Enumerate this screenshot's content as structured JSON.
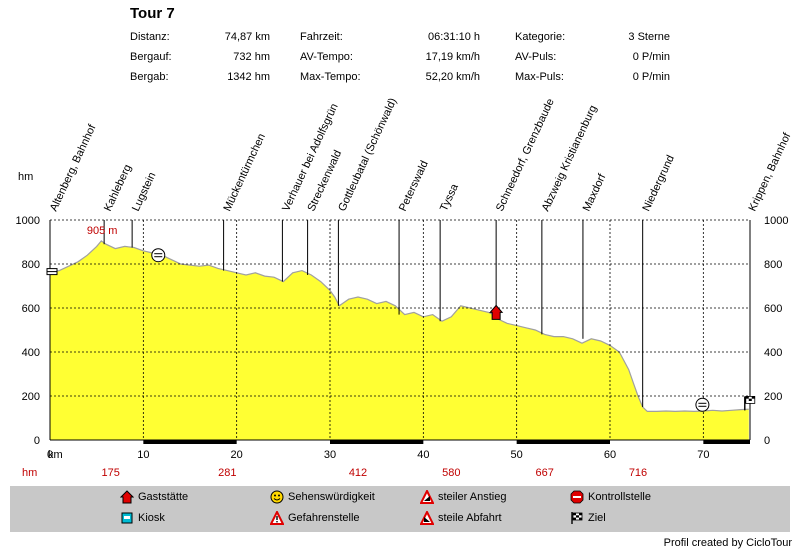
{
  "title": "Tour 7",
  "stats": [
    {
      "label": "Distanz:",
      "value": "74,87 km"
    },
    {
      "label": "Bergauf:",
      "value": "732 hm"
    },
    {
      "label": "Bergab:",
      "value": "1342 hm"
    },
    {
      "label": "Fahrzeit:",
      "value": "06:31:10 h"
    },
    {
      "label": "AV-Tempo:",
      "value": "17,19 km/h"
    },
    {
      "label": "Max-Tempo:",
      "value": "52,20 km/h"
    },
    {
      "label": "Kategorie:",
      "value": "3 Sterne"
    },
    {
      "label": "AV-Puls:",
      "value": "0 P/min"
    },
    {
      "label": "Max-Puls:",
      "value": "0 P/min"
    }
  ],
  "legend": {
    "items": [
      {
        "label": "Gaststätte",
        "icon": "restaurant-icon"
      },
      {
        "label": "Kiosk",
        "icon": "kiosk-icon"
      },
      {
        "label": "Sehenswürdigkeit",
        "icon": "smiley-icon"
      },
      {
        "label": "Gefahrenstelle",
        "icon": "danger-icon"
      },
      {
        "label": "steiler Anstieg",
        "icon": "steep-climb-icon"
      },
      {
        "label": "steile Abfahrt",
        "icon": "steep-descent-icon"
      },
      {
        "label": "Kontrollstelle",
        "icon": "stop-icon"
      },
      {
        "label": "Ziel",
        "icon": "finish-flag-icon"
      }
    ]
  },
  "credit": "Profil created by CicloTour",
  "chart_data": {
    "type": "area",
    "ylabel": "hm",
    "xlabel": "km",
    "bottom_label": "hm",
    "xlim": [
      0,
      75
    ],
    "ylim": [
      0,
      1000
    ],
    "x_ticks": [
      0,
      10,
      20,
      30,
      40,
      50,
      60,
      70
    ],
    "y_ticks": [
      0,
      200,
      400,
      600,
      800,
      1000
    ],
    "grid": true,
    "fill_color": "#ffff33",
    "line_color": "#a0a0a0",
    "profile": {
      "x": [
        0,
        1,
        2,
        3,
        4,
        5,
        5.5,
        6,
        7,
        8,
        9,
        10,
        11,
        12,
        13,
        14,
        15,
        16,
        17,
        18,
        19,
        20,
        21,
        22,
        23,
        24,
        25,
        26,
        27,
        28,
        29,
        30,
        30.5,
        31,
        32,
        33,
        34,
        35,
        36,
        37,
        38,
        39,
        40,
        41,
        42,
        43,
        44,
        45,
        46,
        47,
        47.5,
        48,
        49,
        50,
        51,
        52,
        53,
        54,
        55,
        56,
        57,
        58,
        59,
        60,
        61,
        62,
        62.5,
        63,
        63.5,
        64,
        65,
        66,
        67,
        68,
        69,
        70,
        71,
        72,
        73,
        74,
        74.87
      ],
      "y": [
        760,
        770,
        790,
        810,
        840,
        880,
        905,
        890,
        870,
        880,
        875,
        860,
        850,
        840,
        820,
        800,
        795,
        790,
        795,
        780,
        770,
        760,
        750,
        760,
        745,
        740,
        720,
        760,
        770,
        750,
        720,
        680,
        650,
        610,
        640,
        650,
        640,
        620,
        630,
        610,
        570,
        580,
        560,
        570,
        540,
        560,
        610,
        600,
        590,
        580,
        570,
        550,
        530,
        520,
        510,
        500,
        480,
        470,
        470,
        460,
        440,
        460,
        450,
        430,
        400,
        320,
        260,
        200,
        150,
        130,
        130,
        132,
        130,
        132,
        130,
        132,
        135,
        132,
        135,
        138,
        140
      ]
    },
    "milestones": [
      {
        "km": 0,
        "label": "Altenberg, Bahnhof",
        "hm": ""
      },
      {
        "km": 5.8,
        "label": "Kahleberg",
        "hm": "905 m"
      },
      {
        "km": 8.8,
        "label": "Lugstein",
        "hm": ""
      },
      {
        "km": 18.6,
        "label": "Mückentürmchen",
        "hm": ""
      },
      {
        "km": 24.9,
        "label": "Verhauer bei Adolfsgrün",
        "hm": ""
      },
      {
        "km": 27.6,
        "label": "Streckenwald",
        "hm": ""
      },
      {
        "km": 30.9,
        "label": "Gottleubatal (Schönwald)",
        "hm": ""
      },
      {
        "km": 37.4,
        "label": "Peterswald",
        "hm": ""
      },
      {
        "km": 41.8,
        "label": "Tyssa",
        "hm": ""
      },
      {
        "km": 47.8,
        "label": "Schneedorf, Grenzbaude",
        "hm": ""
      },
      {
        "km": 52.7,
        "label": "Abzweig Kristianenburg",
        "hm": ""
      },
      {
        "km": 57.1,
        "label": "Maxdorf",
        "hm": ""
      },
      {
        "km": 63.5,
        "label": "Niedergrund",
        "hm": ""
      },
      {
        "km": 74.87,
        "label": "Krippen, Bahnhof",
        "hm": ""
      }
    ],
    "hm_marks": [
      {
        "km": 6.5,
        "value": "175"
      },
      {
        "km": 19,
        "value": "281"
      },
      {
        "km": 33,
        "value": "412"
      },
      {
        "km": 43,
        "value": "580"
      },
      {
        "km": 53,
        "value": "667"
      },
      {
        "km": 63,
        "value": "716"
      }
    ],
    "markers": [
      {
        "km": 0,
        "hm": 770,
        "icon": "start-icon"
      },
      {
        "km": 11.6,
        "hm": 840,
        "icon": "steep-descent-icon"
      },
      {
        "km": 47.8,
        "hm": 580,
        "icon": "restaurant-icon"
      },
      {
        "km": 69.9,
        "hm": 160,
        "icon": "steep-descent-icon"
      },
      {
        "km": 74.87,
        "hm": 180,
        "icon": "finish-flag-icon"
      }
    ]
  }
}
